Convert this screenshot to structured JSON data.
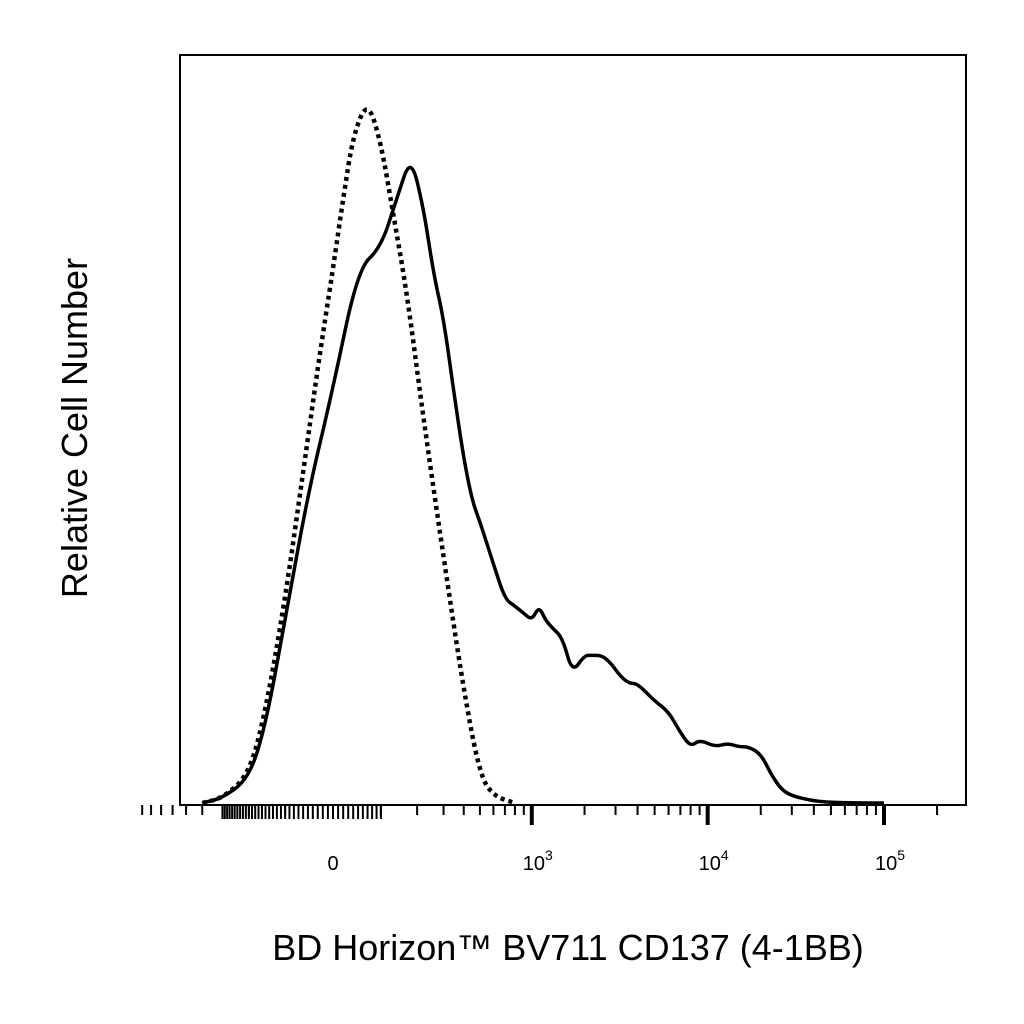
{
  "chart_data": {
    "type": "line",
    "title": "",
    "xlabel": "BD Horizon™ BV711 CD137 (4-1BB)",
    "ylabel": "Relative Cell Number",
    "x_scale": "biexponential",
    "x_tick_labels": [
      {
        "value": 0,
        "base": "0",
        "exp": ""
      },
      {
        "value": 1000,
        "base": "10",
        "exp": "3"
      },
      {
        "value": 10000,
        "base": "10",
        "exp": "4"
      },
      {
        "value": 100000,
        "base": "10",
        "exp": "5"
      }
    ],
    "grid": false,
    "legend": "none",
    "series": [
      {
        "line_style": "dotted",
        "color": "#000000",
        "x": [
          -400,
          -300,
          -200,
          -150,
          -100,
          -60,
          -30,
          0,
          20,
          40,
          70,
          100,
          130,
          170,
          220,
          300,
          400,
          500,
          600,
          800
        ],
        "y": [
          0,
          0.7,
          4,
          13,
          29,
          47,
          62,
          76,
          86,
          95,
          100,
          94,
          84,
          72,
          55,
          35,
          16,
          4,
          1,
          0
        ]
      },
      {
        "line_style": "solid",
        "color": "#000000",
        "x": [
          -400,
          -300,
          -200,
          -150,
          -100,
          -50,
          0,
          50,
          100,
          140,
          180,
          220,
          260,
          300,
          350,
          400,
          450,
          500,
          600,
          700,
          800,
          900,
          1000,
          1100,
          1200,
          1300,
          1500,
          1700,
          2000,
          2200,
          2500,
          2800,
          3200,
          3600,
          4000,
          5000,
          6000,
          7000,
          8000,
          9000,
          11000,
          13000,
          15000,
          17000,
          20000,
          23000,
          26000,
          30000,
          40000,
          50000,
          70000,
          100000
        ],
        "y": [
          0,
          0.7,
          3.5,
          11,
          26,
          44,
          59,
          76,
          79,
          86,
          92,
          85,
          75,
          69,
          58,
          49,
          43,
          40,
          34,
          29,
          28,
          27,
          26,
          28,
          26,
          25,
          23.5,
          18.5,
          21,
          21,
          21,
          20,
          18,
          17,
          17,
          14.5,
          13,
          10,
          8,
          9,
          8,
          8.5,
          8,
          8,
          7,
          4,
          2,
          1,
          0.3,
          0.1,
          0,
          0
        ]
      }
    ]
  }
}
